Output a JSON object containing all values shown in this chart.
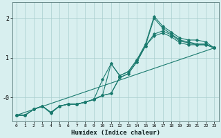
{
  "xlabel": "Humidex (Indice chaleur)",
  "xlim": [
    -0.5,
    23.5
  ],
  "ylim": [
    -0.6,
    2.4
  ],
  "bg_color": "#d8efef",
  "line_color": "#1a7a6e",
  "grid_color": "#aacece",
  "series": [
    {
      "x": [
        0,
        1,
        2,
        3,
        4,
        5,
        6,
        7,
        8,
        9,
        10,
        11,
        12,
        13,
        14,
        15,
        16,
        17,
        18,
        19,
        20,
        21,
        22,
        23
      ],
      "y": [
        -0.45,
        -0.45,
        -0.3,
        -0.22,
        -0.38,
        -0.22,
        -0.17,
        -0.17,
        -0.12,
        -0.05,
        0.05,
        0.85,
        0.55,
        0.65,
        0.95,
        1.35,
        2.05,
        1.8,
        1.65,
        1.5,
        1.45,
        1.45,
        1.4,
        1.25
      ]
    },
    {
      "x": [
        0,
        1,
        2,
        3,
        4,
        5,
        6,
        7,
        8,
        9,
        10,
        11,
        12,
        13,
        14,
        15,
        16,
        17,
        18,
        19,
        20,
        21,
        22,
        23
      ],
      "y": [
        -0.45,
        -0.45,
        -0.3,
        -0.22,
        -0.4,
        -0.22,
        -0.17,
        -0.17,
        -0.12,
        -0.05,
        0.05,
        0.1,
        0.5,
        0.6,
        0.9,
        1.3,
        2.0,
        1.75,
        1.6,
        1.45,
        1.4,
        1.35,
        1.35,
        1.25
      ]
    },
    {
      "x": [
        0,
        1,
        2,
        3,
        4,
        5,
        6,
        7,
        8,
        9,
        10,
        11,
        12,
        13,
        14,
        15,
        16,
        17,
        18,
        19,
        20,
        21,
        22,
        23
      ],
      "y": [
        -0.45,
        -0.45,
        -0.3,
        -0.22,
        -0.38,
        -0.22,
        -0.17,
        -0.17,
        -0.12,
        -0.05,
        0.45,
        0.85,
        0.55,
        0.65,
        0.95,
        1.3,
        1.6,
        1.68,
        1.58,
        1.42,
        1.38,
        1.33,
        1.33,
        1.25
      ]
    },
    {
      "x": [
        0,
        23
      ],
      "y": [
        -0.45,
        1.25
      ]
    },
    {
      "x": [
        0,
        1,
        2,
        3,
        4,
        5,
        6,
        7,
        8,
        9,
        10,
        11,
        12,
        13,
        14,
        15,
        16,
        17,
        18,
        19,
        20,
        21,
        22,
        23
      ],
      "y": [
        -0.45,
        -0.45,
        -0.3,
        -0.22,
        -0.38,
        -0.22,
        -0.17,
        -0.17,
        -0.12,
        -0.05,
        0.05,
        0.1,
        0.5,
        0.6,
        0.9,
        1.3,
        1.55,
        1.63,
        1.53,
        1.38,
        1.33,
        1.33,
        1.33,
        1.25
      ]
    }
  ],
  "xticks": [
    0,
    1,
    2,
    3,
    4,
    5,
    6,
    7,
    8,
    9,
    10,
    11,
    12,
    13,
    14,
    15,
    16,
    17,
    18,
    19,
    20,
    21,
    22,
    23
  ],
  "yticks": [
    0.0,
    1.0,
    2.0
  ],
  "ytick_labels": [
    "-0",
    "1",
    "2"
  ]
}
